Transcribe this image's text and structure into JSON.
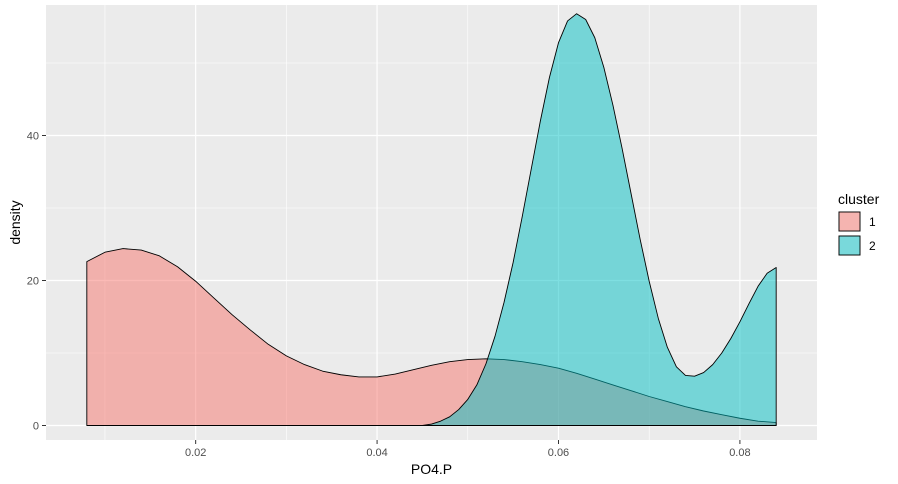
{
  "chart_data": {
    "type": "area",
    "xlabel": "PO4.P",
    "ylabel": "density",
    "xlim": [
      0.0035,
      0.0885
    ],
    "ylim": [
      -2,
      58
    ],
    "x_ticks": [
      0.02,
      0.04,
      0.06,
      0.08
    ],
    "x_tick_labels": [
      "0.02",
      "0.04",
      "0.06",
      "0.08"
    ],
    "y_ticks": [
      0,
      20,
      40
    ],
    "y_tick_labels": [
      "0",
      "20",
      "40"
    ],
    "grid": true,
    "legend": {
      "title": "cluster",
      "position": "right"
    },
    "series": [
      {
        "name": "1",
        "color": "#F8766D",
        "x": [
          0.008,
          0.01,
          0.012,
          0.014,
          0.016,
          0.018,
          0.02,
          0.022,
          0.024,
          0.026,
          0.028,
          0.03,
          0.032,
          0.034,
          0.036,
          0.038,
          0.04,
          0.042,
          0.044,
          0.046,
          0.048,
          0.05,
          0.052,
          0.054,
          0.056,
          0.058,
          0.06,
          0.062,
          0.064,
          0.066,
          0.068,
          0.07,
          0.072,
          0.074,
          0.076,
          0.078,
          0.08,
          0.082,
          0.084
        ],
        "values": [
          22.6,
          23.9,
          24.4,
          24.2,
          23.4,
          21.9,
          19.9,
          17.6,
          15.3,
          13.2,
          11.2,
          9.6,
          8.4,
          7.5,
          7.0,
          6.7,
          6.7,
          7.1,
          7.7,
          8.3,
          8.8,
          9.1,
          9.2,
          9.1,
          8.8,
          8.4,
          7.9,
          7.2,
          6.4,
          5.6,
          4.8,
          4.0,
          3.3,
          2.6,
          2.0,
          1.5,
          1.0,
          0.6,
          0.4
        ]
      },
      {
        "name": "2",
        "color": "#00BFC4",
        "x": [
          0.045,
          0.046,
          0.047,
          0.048,
          0.049,
          0.05,
          0.051,
          0.052,
          0.053,
          0.054,
          0.055,
          0.056,
          0.057,
          0.058,
          0.059,
          0.06,
          0.061,
          0.062,
          0.063,
          0.064,
          0.065,
          0.066,
          0.067,
          0.068,
          0.069,
          0.07,
          0.071,
          0.072,
          0.073,
          0.074,
          0.075,
          0.076,
          0.077,
          0.078,
          0.079,
          0.08,
          0.081,
          0.082,
          0.083,
          0.084
        ],
        "values": [
          0.0,
          0.2,
          0.6,
          1.2,
          2.2,
          3.6,
          5.6,
          8.5,
          12.3,
          17.0,
          22.5,
          28.8,
          35.4,
          42.0,
          48.0,
          52.8,
          55.8,
          56.8,
          56.0,
          53.5,
          49.4,
          44.2,
          38.3,
          32.0,
          25.7,
          19.9,
          14.8,
          10.8,
          8.1,
          6.9,
          6.8,
          7.3,
          8.4,
          10.0,
          12.0,
          14.3,
          16.8,
          19.2,
          21.0,
          21.8
        ]
      }
    ]
  }
}
